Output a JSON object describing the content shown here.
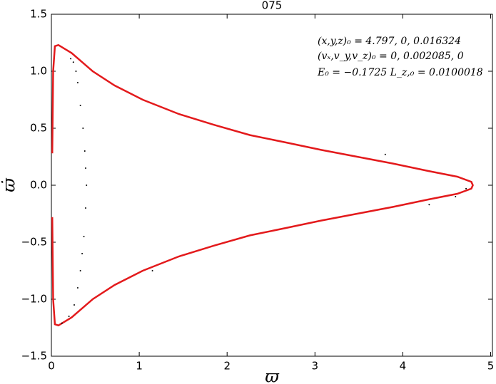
{
  "chart_data": {
    "type": "line",
    "title": "075",
    "xlabel": "ϖ",
    "ylabel": "ϖ̇",
    "annotations": [
      "(x,y,z)₀ = 4.797, 0, 0.016324",
      "(vₓ,v_y,v_z)₀ = 0, 0.002085, 0",
      "E₀ = −0.1725  L_z,₀ = 0.0100018"
    ],
    "xlim": [
      0,
      5.02
    ],
    "ylim": [
      -1.5,
      1.5
    ],
    "xticks": [
      0,
      1,
      2,
      3,
      4,
      5
    ],
    "yticks": [
      {
        "value": -1.5,
        "label": "−1.5"
      },
      {
        "value": -1.0,
        "label": "−1.0"
      },
      {
        "value": -0.5,
        "label": "−0.5"
      },
      {
        "value": 0,
        "label": "0.0"
      },
      0.5,
      {
        "value": 1.0,
        "label": "1.0"
      },
      1.5
    ],
    "series": [
      {
        "color": "#e31a1c",
        "x": [
          0.01,
          0.02,
          0.04,
          0.08,
          0.23,
          0.47,
          0.72,
          1.04,
          1.45,
          1.85,
          2.26,
          2.67,
          3.07,
          3.48,
          3.89,
          4.29,
          4.62,
          4.78,
          4.797,
          4.78,
          4.62,
          4.29,
          3.89,
          3.48,
          3.07,
          2.67,
          2.26,
          1.85,
          1.45,
          1.04,
          0.72,
          0.47,
          0.23,
          0.08,
          0.04,
          0.02,
          0.01
        ],
        "values": [
          0.28,
          1.0,
          1.22,
          1.23,
          1.16,
          1.0,
          0.875,
          0.75,
          0.625,
          0.53,
          0.44,
          0.375,
          0.31,
          0.25,
          0.19,
          0.125,
          0.075,
          0.03,
          0,
          -0.03,
          -0.075,
          -0.125,
          -0.19,
          -0.25,
          -0.31,
          -0.375,
          -0.44,
          -0.53,
          -0.625,
          -0.75,
          -0.875,
          -1.0,
          -1.16,
          -1.23,
          -1.22,
          -1.0,
          -0.28
        ]
      },
      {
        "type": "scatter",
        "color": "#000000",
        "x": [
          0.22,
          0.25,
          0.28,
          0.3,
          0.33,
          0.36,
          0.38,
          0.39,
          0.4,
          0.39,
          0.37,
          0.35,
          0.33,
          0.3,
          0.26,
          0.2,
          0.12,
          4.72,
          4.6,
          4.3,
          3.8,
          1.15
        ],
        "values": [
          1.11,
          1.08,
          1.0,
          0.9,
          0.7,
          0.5,
          0.3,
          0.15,
          0,
          -0.2,
          -0.45,
          -0.6,
          -0.75,
          -0.9,
          -1.05,
          -1.15,
          -1.21,
          -0.03,
          -0.1,
          -0.17,
          0.27,
          -0.75
        ]
      }
    ]
  }
}
